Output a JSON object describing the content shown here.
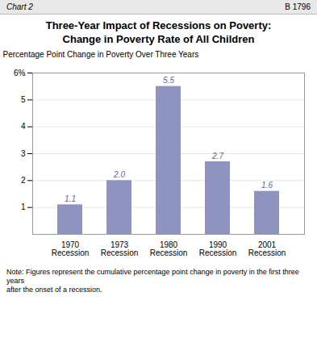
{
  "chart_data": {
    "type": "bar",
    "title": "Three-Year Impact of Recessions on Poverty:\nChange in Poverty Rate of All Children",
    "ylabel": "Percentage Point Change in Poverty Over Three Years",
    "categories": [
      "1970\nRecession",
      "1973\nRecession",
      "1980\nRecession",
      "1990\nRecession",
      "2001\nRecession"
    ],
    "values": [
      1.1,
      2.0,
      5.5,
      2.7,
      1.6
    ],
    "value_labels": [
      "1.1",
      "2.0",
      "5.5",
      "2.7",
      "1.6"
    ],
    "data_labels": true,
    "color": "#8f93bf",
    "ylim": [
      0,
      6
    ],
    "yticks": [
      1,
      2,
      3,
      4,
      5,
      {
        "value": 6,
        "label": "6%"
      }
    ],
    "grid": true,
    "annotations": [
      "Chart 2",
      "B 1796",
      "Note:  Figures represent the cumulative percentage point change in poverty in the first three years\nafter the onset of a recession."
    ]
  }
}
